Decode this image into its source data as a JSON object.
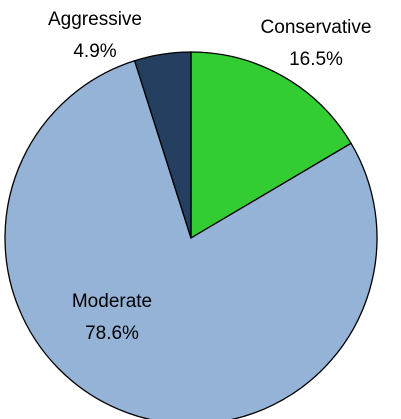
{
  "chart_data": {
    "type": "pie",
    "categories": [
      "Conservative",
      "Moderate",
      "Aggressive"
    ],
    "values": [
      16.5,
      78.6,
      4.9
    ],
    "value_labels": [
      "16.5%",
      "78.6%",
      "4.9%"
    ],
    "colors": [
      "#33cc33",
      "#95b3d7",
      "#243f60"
    ]
  }
}
